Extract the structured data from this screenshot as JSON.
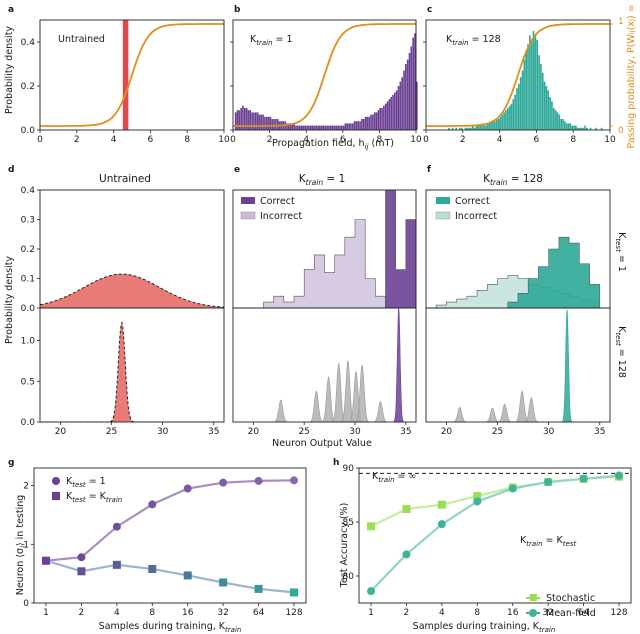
{
  "colors": {
    "purple": "#6b4194",
    "purple_light": "#c9bad9",
    "teal": "#2ea898",
    "teal_light": "#b8ded8",
    "red": "#e8746f",
    "red_bar": "#e0363a",
    "orange": "#e08e1c",
    "green_light": "#9ade52",
    "green_dark": "#3db39a",
    "blue_grey": "#4f8bb0",
    "grey": "#b0b0b0"
  },
  "top_row": {
    "xlabel": "Propagation field, h",
    "xlabel_sub": "ij",
    "xlabel_unit": " (mT)",
    "ylabel": "Probability density",
    "ylabel_right": "Passing probability, P(W",
    "ylabel_right_sub": "ij",
    "ylabel_right_tail": "(x",
    "ylabel_right_sub2": "j",
    "ylabel_right_end": ") = 1)",
    "right_ticks": [
      "0",
      "1"
    ],
    "panels": [
      {
        "letter": "a",
        "title": "Untrained",
        "title_k": "",
        "title_eq": ""
      },
      {
        "letter": "b",
        "title": "",
        "title_k": "train",
        "title_eq": " = 1"
      },
      {
        "letter": "c",
        "title": "",
        "title_k": "train",
        "title_eq": " = 128"
      }
    ]
  },
  "mid_grid": {
    "xlabel": "Neuron Output Value",
    "ylabel": "Probability density",
    "col_titles": [
      {
        "letter": "d",
        "text": "Untrained",
        "k": "",
        "eq": ""
      },
      {
        "letter": "e",
        "text": "",
        "k": "train",
        "eq": " = 1"
      },
      {
        "letter": "f",
        "text": "",
        "k": "train",
        "eq": " = 128"
      }
    ],
    "row_labels": [
      {
        "k": "test",
        "eq": " = 1"
      },
      {
        "k": "test",
        "eq": " = 128"
      }
    ],
    "legend_correct": "Correct",
    "legend_incorrect": "Incorrect"
  },
  "chart_data": [
    {
      "id": "a",
      "type": "bar",
      "title": "Untrained",
      "xlim": [
        0,
        10
      ],
      "ylim": [
        0,
        0.5
      ],
      "xticks": [
        0,
        2,
        4,
        6,
        8,
        10
      ],
      "yticks": [
        0.0,
        0.2,
        0.4
      ],
      "ytick_labels": [
        "0.0",
        "0.2",
        "0.4"
      ],
      "bars": [
        {
          "x0": 4.5,
          "x1": 4.8,
          "value": 0.5,
          "series": "red"
        }
      ],
      "sigmoid": {
        "center": 5.0,
        "width": 0.45,
        "label": "Passing probability"
      }
    },
    {
      "id": "b",
      "type": "bar",
      "title": "K_train = 1",
      "xlim": [
        0,
        10
      ],
      "ylim": [
        0,
        0.5
      ],
      "xticks": [
        0,
        2,
        4,
        6,
        8,
        10
      ],
      "bin_start": 0.1,
      "bin_width": 0.1,
      "values": [
        0.08,
        0.09,
        0.09,
        0.1,
        0.11,
        0.1,
        0.1,
        0.09,
        0.09,
        0.08,
        0.08,
        0.08,
        0.08,
        0.07,
        0.07,
        0.07,
        0.06,
        0.06,
        0.06,
        0.06,
        0.05,
        0.05,
        0.05,
        0.05,
        0.04,
        0.04,
        0.04,
        0.04,
        0.03,
        0.03,
        0.03,
        0.03,
        0.03,
        0.02,
        0.02,
        0.02,
        0.02,
        0.02,
        0.02,
        0.02,
        0.02,
        0.02,
        0.02,
        0.02,
        0.02,
        0.02,
        0.02,
        0.02,
        0.02,
        0.02,
        0.02,
        0.02,
        0.02,
        0.02,
        0.02,
        0.02,
        0.02,
        0.02,
        0.02,
        0.02,
        0.03,
        0.03,
        0.03,
        0.03,
        0.03,
        0.04,
        0.04,
        0.04,
        0.04,
        0.05,
        0.05,
        0.06,
        0.06,
        0.06,
        0.07,
        0.07,
        0.08,
        0.08,
        0.09,
        0.1,
        0.1,
        0.11,
        0.12,
        0.13,
        0.14,
        0.15,
        0.16,
        0.17,
        0.18,
        0.2,
        0.22,
        0.24,
        0.27,
        0.3,
        0.32,
        0.35,
        0.38,
        0.42,
        0.44,
        0.22
      ],
      "sigmoid": {
        "center": 5.0,
        "width": 0.45
      }
    },
    {
      "id": "c",
      "type": "bar",
      "title": "K_train = 128",
      "xlim": [
        0,
        10
      ],
      "ylim": [
        0,
        0.5
      ],
      "xticks": [
        0,
        2,
        4,
        6,
        8,
        10
      ],
      "bin_start": 1.2,
      "bin_width": 0.1,
      "values": [
        0.01,
        0.0,
        0.01,
        0.0,
        0.01,
        0.0,
        0.01,
        0.01,
        0.0,
        0.01,
        0.01,
        0.01,
        0.01,
        0.02,
        0.01,
        0.02,
        0.02,
        0.02,
        0.02,
        0.03,
        0.02,
        0.03,
        0.03,
        0.04,
        0.04,
        0.04,
        0.05,
        0.05,
        0.06,
        0.07,
        0.08,
        0.09,
        0.1,
        0.11,
        0.12,
        0.14,
        0.16,
        0.19,
        0.21,
        0.24,
        0.27,
        0.32,
        0.36,
        0.39,
        0.43,
        0.41,
        0.45,
        0.43,
        0.41,
        0.34,
        0.3,
        0.26,
        0.22,
        0.2,
        0.18,
        0.15,
        0.13,
        0.1,
        0.09,
        0.08,
        0.07,
        0.05,
        0.05,
        0.04,
        0.03,
        0.03,
        0.03,
        0.02,
        0.02,
        0.02,
        0.01,
        0.01,
        0.01,
        0.01,
        0.02,
        0.01,
        0.0,
        0.01,
        0.0,
        0.0,
        0.01,
        0.0,
        0.0,
        0.01,
        0.0,
        0.0,
        0.0,
        0.0,
        0.0,
        0.0
      ],
      "sigmoid": {
        "center": 5.0,
        "width": 0.45
      }
    },
    {
      "id": "d-top",
      "type": "area",
      "title": "Untrained / K_test = 1",
      "xlim": [
        18,
        36
      ],
      "ylim": [
        0,
        0.4
      ],
      "yticks": [
        0.0,
        0.1,
        0.2,
        0.3,
        0.4
      ],
      "ytick_labels": [
        "0.0",
        "0.1",
        "0.2",
        "0.3",
        "0.4"
      ],
      "gaussian": {
        "mean": 26,
        "sd": 3.7,
        "peak": 0.115
      }
    },
    {
      "id": "d-bottom",
      "type": "area",
      "title": "Untrained / K_test = 128",
      "xlim": [
        18,
        36
      ],
      "ylim": [
        0,
        1.4
      ],
      "yticks": [
        0.0,
        0.5,
        1.0
      ],
      "ytick_labels": [
        "0.0",
        "0.5",
        "1.0"
      ],
      "xticks": [
        20,
        25,
        30,
        35
      ],
      "gaussian": {
        "mean": 26,
        "sd": 0.33,
        "peak": 1.22
      }
    },
    {
      "id": "e-top",
      "type": "bar",
      "title": "K_train = 1 / K_test = 1",
      "xlim": [
        18,
        36
      ],
      "ylim": [
        0,
        0.4
      ],
      "series": [
        {
          "name": "Incorrect",
          "edges": [
            21,
            22,
            23,
            24,
            25,
            26,
            27,
            28,
            29,
            30,
            31,
            32,
            33
          ],
          "values": [
            0.02,
            0.04,
            0.02,
            0.04,
            0.13,
            0.18,
            0.12,
            0.18,
            0.24,
            0.3,
            0.1,
            0.04
          ]
        },
        {
          "name": "Correct",
          "edges": [
            33,
            34,
            35,
            36
          ],
          "values": [
            0.4,
            0.13,
            0.3
          ]
        }
      ]
    },
    {
      "id": "e-bottom",
      "type": "area",
      "title": "K_train = 1 / K_test = 128",
      "xlim": [
        18,
        36
      ],
      "ylim": [
        0,
        1.4
      ],
      "xticks": [
        20,
        25,
        30,
        35
      ],
      "peaks": [
        {
          "x": 22.7,
          "h": 0.27,
          "series": "Incorrect"
        },
        {
          "x": 26.2,
          "h": 0.38,
          "series": "Incorrect"
        },
        {
          "x": 27.4,
          "h": 0.55,
          "series": "Incorrect"
        },
        {
          "x": 28.4,
          "h": 0.72,
          "series": "Incorrect"
        },
        {
          "x": 29.3,
          "h": 0.75,
          "series": "Incorrect"
        },
        {
          "x": 30.1,
          "h": 0.62,
          "series": "Incorrect"
        },
        {
          "x": 30.7,
          "h": 0.7,
          "series": "Incorrect"
        },
        {
          "x": 32.5,
          "h": 0.25,
          "series": "Incorrect"
        },
        {
          "x": 34.3,
          "h": 1.4,
          "series": "Correct"
        }
      ]
    },
    {
      "id": "f-top",
      "type": "bar",
      "title": "K_train = 128 / K_test = 1",
      "xlim": [
        18,
        36
      ],
      "ylim": [
        0,
        0.4
      ],
      "series": [
        {
          "name": "Incorrect",
          "edges": [
            19,
            20,
            21,
            22,
            23,
            24,
            25,
            26,
            27,
            28,
            29,
            30,
            31,
            32,
            33,
            34,
            35
          ],
          "values": [
            0.01,
            0.02,
            0.03,
            0.04,
            0.06,
            0.08,
            0.1,
            0.11,
            0.1,
            0.08,
            0.07,
            0.06,
            0.05,
            0.04,
            0.03,
            0.02
          ]
        },
        {
          "name": "Correct",
          "edges": [
            26,
            27,
            28,
            29,
            30,
            31,
            32,
            33,
            34,
            35
          ],
          "values": [
            0.02,
            0.05,
            0.1,
            0.14,
            0.2,
            0.24,
            0.22,
            0.15,
            0.08
          ]
        }
      ]
    },
    {
      "id": "f-bottom",
      "type": "area",
      "title": "K_train = 128 / K_test = 128",
      "xlim": [
        18,
        36
      ],
      "ylim": [
        0,
        1.4
      ],
      "xticks": [
        20,
        25,
        30,
        35
      ],
      "peaks": [
        {
          "x": 21.3,
          "h": 0.18,
          "series": "Incorrect"
        },
        {
          "x": 24.5,
          "h": 0.17,
          "series": "Incorrect"
        },
        {
          "x": 25.7,
          "h": 0.22,
          "series": "Incorrect"
        },
        {
          "x": 27.4,
          "h": 0.38,
          "series": "Incorrect"
        },
        {
          "x": 28.3,
          "h": 0.3,
          "series": "Incorrect"
        },
        {
          "x": 31.8,
          "h": 1.38,
          "series": "Correct"
        }
      ]
    },
    {
      "id": "g",
      "type": "line",
      "xlabel": "Samples during training, K",
      "xlabel_sub": "train",
      "ylabel": "Neuron ⟨σ",
      "ylabel_sub": "l",
      "ylabel_end": "⟩ in testing",
      "categories": [
        "1",
        "2",
        "4",
        "8",
        "16",
        "32",
        "64",
        "128"
      ],
      "ylim": [
        0,
        2.3
      ],
      "yticks": [
        0,
        1,
        2
      ],
      "ytick_labels": [
        "0",
        "1",
        "2"
      ],
      "legend": [
        {
          "k": "test",
          "eq": " = 1"
        },
        {
          "k": "test",
          "eq": " = K",
          "eq_sub": "train"
        }
      ],
      "series": [
        {
          "name": "K_test = 1",
          "values": [
            0.72,
            0.78,
            1.3,
            1.68,
            1.95,
            2.05,
            2.08,
            2.09
          ]
        },
        {
          "name": "K_test = K_train",
          "values": [
            0.72,
            0.54,
            0.65,
            0.58,
            0.47,
            0.35,
            0.24,
            0.18
          ]
        }
      ]
    },
    {
      "id": "h",
      "type": "line",
      "xlabel": "Samples during training, K",
      "xlabel_sub": "train",
      "ylabel": "Test Accuracy (%)",
      "categories": [
        "1",
        "2",
        "4",
        "8",
        "16",
        "32",
        "64",
        "128"
      ],
      "ylim": [
        77.5,
        90
      ],
      "yticks": [
        80,
        85,
        90
      ],
      "ytick_labels": [
        "80",
        "85",
        "90"
      ],
      "reference_line": {
        "value": 89.5,
        "label_k": "train",
        "label_eq": " = ∞"
      },
      "annotation": {
        "k_main": "train",
        "k_test": "test"
      },
      "series": [
        {
          "name": "Stochastic",
          "values": [
            84.6,
            86.2,
            86.6,
            87.4,
            88.2,
            88.7,
            89.0,
            89.2
          ]
        },
        {
          "name": "Mean-field",
          "values": [
            78.6,
            82.0,
            84.8,
            86.9,
            88.1,
            88.7,
            89.0,
            89.3
          ]
        }
      ]
    }
  ]
}
